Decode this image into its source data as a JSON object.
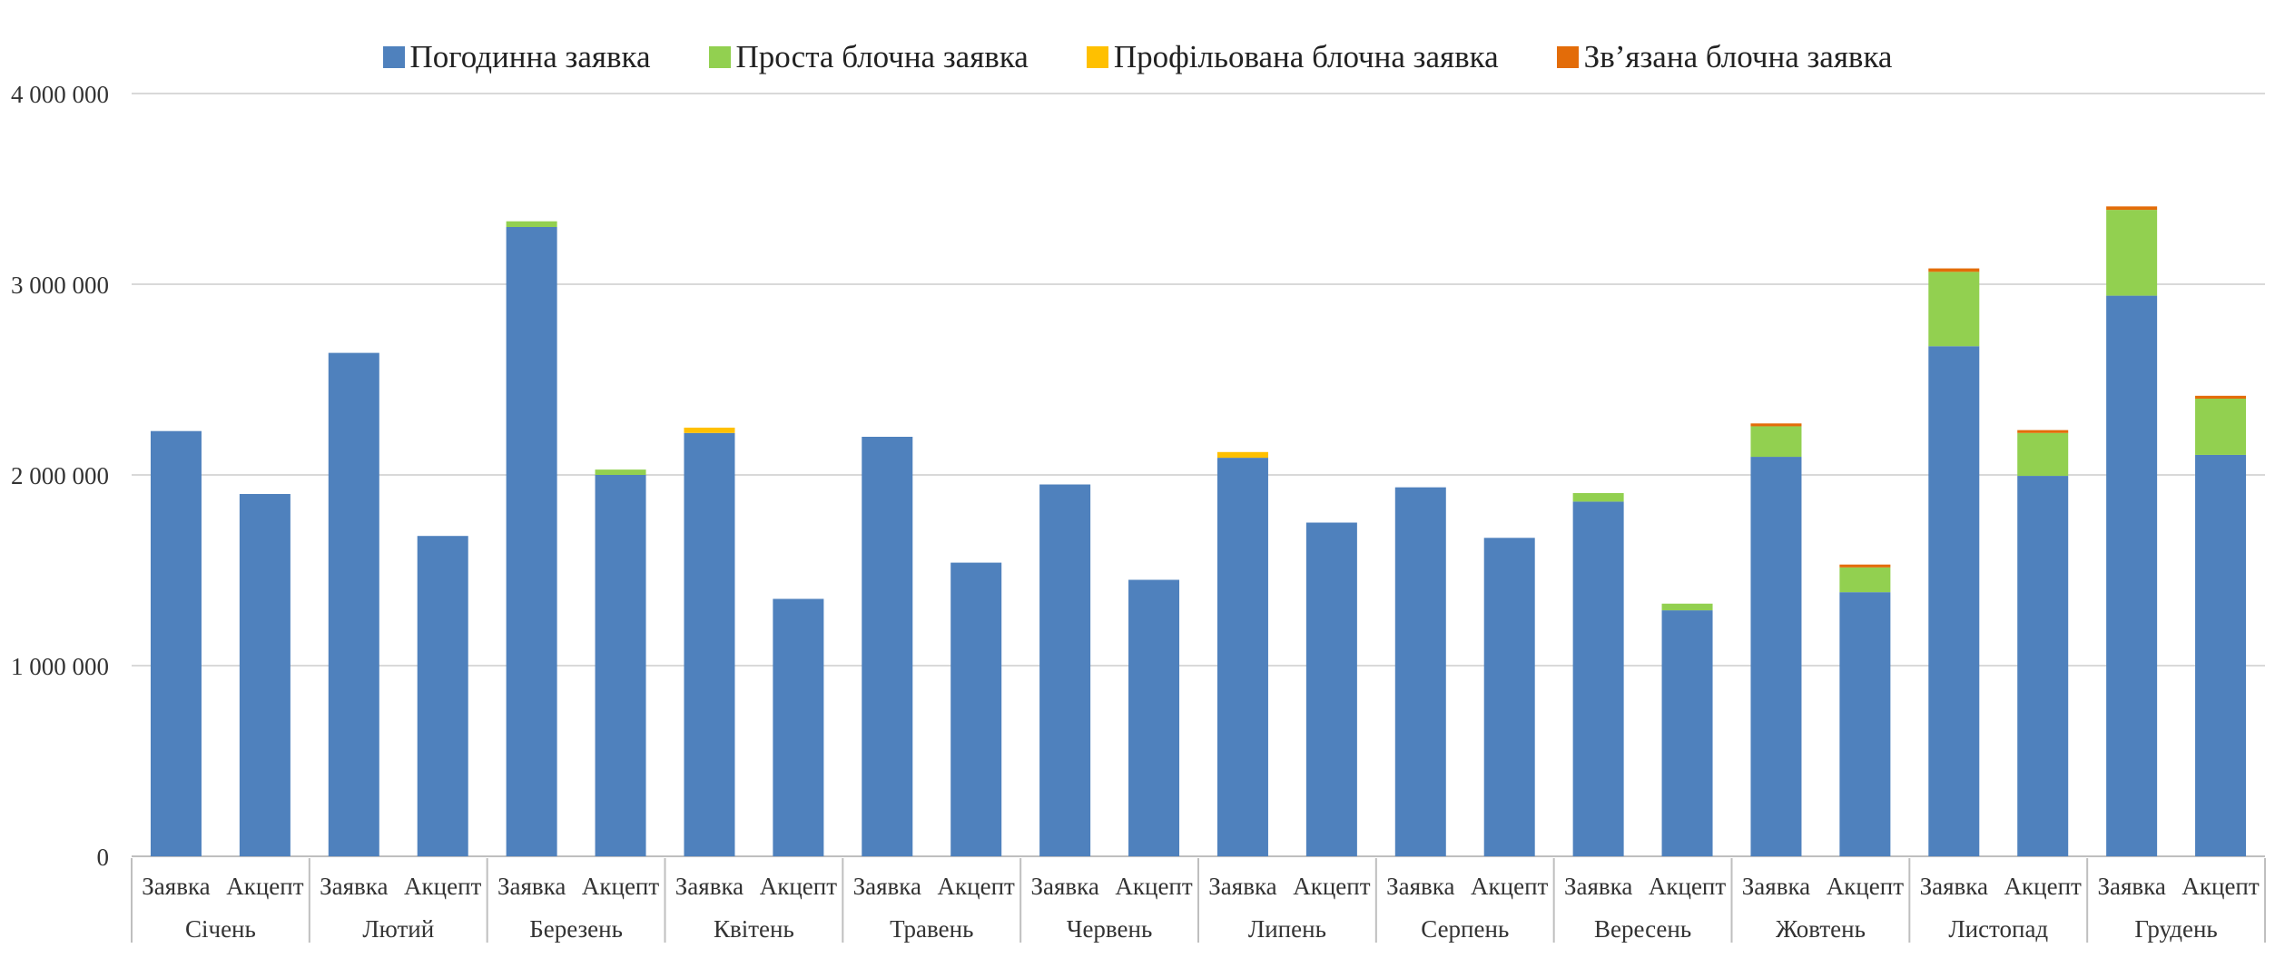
{
  "chart_data": {
    "type": "bar",
    "stacked": true,
    "title": "",
    "xlabel": "",
    "ylabel": "",
    "ylim": [
      0,
      4000000
    ],
    "yticks": [
      0,
      1000000,
      2000000,
      3000000,
      4000000
    ],
    "ytick_labels": [
      "0",
      "1 000 000",
      "2 000 000",
      "3 000 000",
      "4 000 000"
    ],
    "grid": true,
    "legend_position": "top",
    "months": [
      "Січень",
      "Лютий",
      "Березень",
      "Квітень",
      "Травень",
      "Червень",
      "Липень",
      "Серпень",
      "Вересень",
      "Жовтень",
      "Листопад",
      "Грудень"
    ],
    "sub_categories": [
      "Заявка",
      "Акцепт"
    ],
    "categories": [
      "Січень Заявка",
      "Січень Акцепт",
      "Лютий Заявка",
      "Лютий Акцепт",
      "Березень Заявка",
      "Березень Акцепт",
      "Квітень Заявка",
      "Квітень Акцепт",
      "Травень Заявка",
      "Травень Акцепт",
      "Червень Заявка",
      "Червень Акцепт",
      "Липень Заявка",
      "Липень Акцепт",
      "Серпень Заявка",
      "Серпень Акцепт",
      "Вересень Заявка",
      "Вересень Акцепт",
      "Жовтень Заявка",
      "Жовтень Акцепт",
      "Листопад Заявка",
      "Листопад Акцепт",
      "Грудень Заявка",
      "Грудень Акцепт"
    ],
    "series": [
      {
        "name": "Погодинна заявка",
        "color": "#4F81BD",
        "values": [
          2230000,
          1900000,
          2640000,
          1680000,
          3300000,
          2000000,
          2220000,
          1350000,
          2200000,
          1540000,
          1950000,
          1450000,
          2090000,
          1750000,
          1935000,
          1670000,
          1860000,
          1290000,
          2095000,
          1385000,
          2675000,
          1995000,
          2940000,
          2105000
        ]
      },
      {
        "name": "Проста блочна заявка",
        "color": "#92D050",
        "values": [
          0,
          0,
          0,
          0,
          30000,
          28000,
          0,
          0,
          0,
          0,
          0,
          0,
          0,
          0,
          0,
          0,
          45000,
          35000,
          160000,
          130000,
          390000,
          225000,
          450000,
          295000
        ]
      },
      {
        "name": "Профільована блочна заявка",
        "color": "#FFC000",
        "values": [
          0,
          0,
          0,
          0,
          0,
          0,
          28000,
          0,
          0,
          0,
          0,
          0,
          30000,
          0,
          0,
          0,
          0,
          0,
          0,
          0,
          0,
          0,
          0,
          0
        ]
      },
      {
        "name": "Зв’язана блочна заявка",
        "color": "#E36C09",
        "values": [
          0,
          0,
          0,
          0,
          0,
          0,
          0,
          0,
          0,
          0,
          0,
          0,
          0,
          0,
          0,
          0,
          0,
          0,
          15000,
          15000,
          18000,
          15000,
          18000,
          15000
        ]
      }
    ]
  }
}
